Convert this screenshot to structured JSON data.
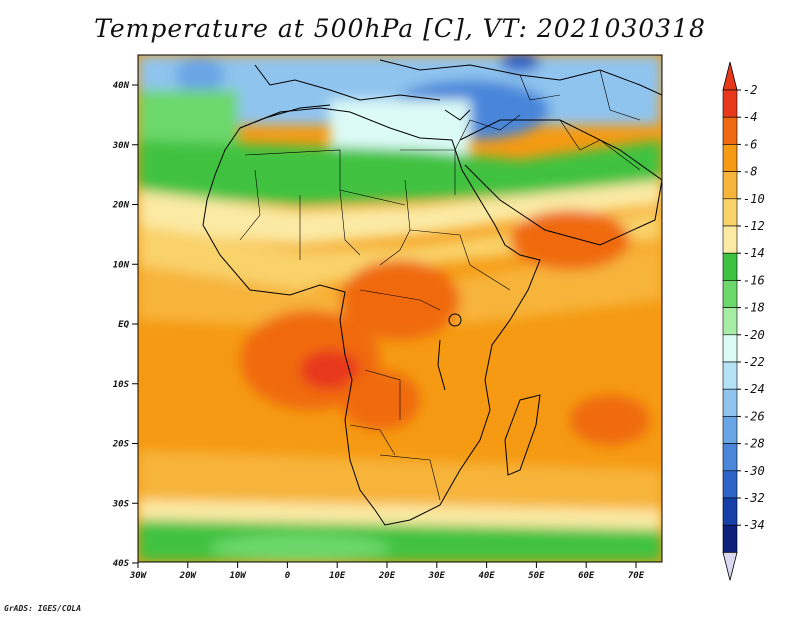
{
  "title": "Temperature at 500hPa [C], VT: 2021030318",
  "credit": "GrADS: IGES/COLA",
  "lat_labels": [
    "40N",
    "30N",
    "20N",
    "10N",
    "EQ",
    "10S",
    "20S",
    "30S",
    "40S"
  ],
  "lon_labels": [
    "30W",
    "20W",
    "10W",
    "0",
    "10E",
    "20E",
    "30E",
    "40E",
    "50E",
    "60E",
    "70E"
  ],
  "colorbar": {
    "labels": [
      "-2",
      "-4",
      "-6",
      "-8",
      "-10",
      "-12",
      "-14",
      "-16",
      "-18",
      "-20",
      "-22",
      "-24",
      "-26",
      "-28",
      "-30",
      "-32",
      "-34"
    ],
    "colors": [
      "#e8381c",
      "#f06a10",
      "#f59a12",
      "#f7b43a",
      "#f9d26a",
      "#fbeaa4",
      "#3fc23f",
      "#6cd86c",
      "#a5eca5",
      "#dcfbf6",
      "#b6e2f5",
      "#8fc4ee",
      "#6aa6e6",
      "#4a86da",
      "#2e63c8",
      "#173fa8",
      "#0c1f7a"
    ],
    "top_cap": "#e8381c",
    "bottom_cap": "#d8d8f0"
  }
}
